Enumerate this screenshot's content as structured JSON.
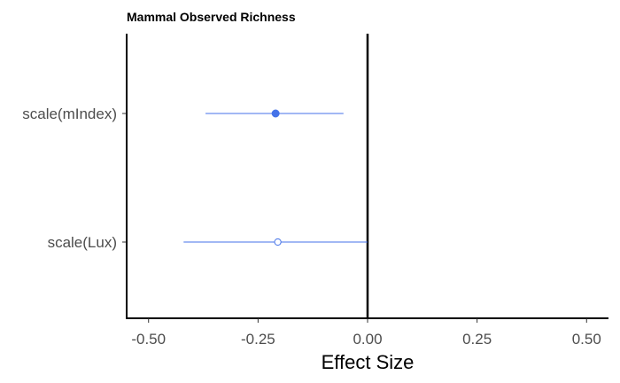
{
  "chart_data": {
    "type": "scatter",
    "title": "Mammal Observed Richness",
    "xlabel": "Effect Size",
    "ylabel": "",
    "xlim": [
      -0.55,
      0.55
    ],
    "x_ticks": [
      -0.5,
      -0.25,
      0.0,
      0.25,
      0.5
    ],
    "x_tick_labels": [
      "-0.50",
      "-0.25",
      "0.00",
      "0.25",
      "0.50"
    ],
    "reference_line": 0.0,
    "grid": false,
    "categories": [
      "scale(mIndex)",
      "scale(Lux)"
    ],
    "series": [
      {
        "color": "#4472e8",
        "points": [
          {
            "term": "scale(mIndex)",
            "estimate": -0.21,
            "lower": -0.37,
            "upper": -0.055,
            "filled": true
          },
          {
            "term": "scale(Lux)",
            "estimate": -0.205,
            "lower": -0.42,
            "upper": 0.0,
            "filled": false
          }
        ]
      }
    ]
  }
}
